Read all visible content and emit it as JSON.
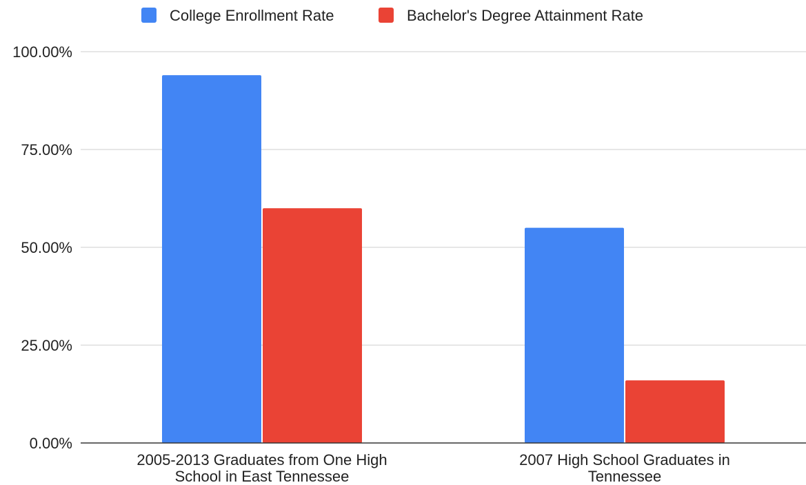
{
  "chart_data": {
    "type": "bar",
    "title": "",
    "xlabel": "",
    "ylabel": "",
    "categories": [
      [
        "2005-2013 Graduates from One High",
        "School in East Tennessee"
      ],
      [
        "2007 High School Graduates in",
        "Tennessee"
      ]
    ],
    "series": [
      {
        "name": "College Enrollment Rate",
        "color": "#4285f4",
        "values": [
          0.94,
          0.55
        ]
      },
      {
        "name": "Bachelor's Degree Attainment Rate",
        "color": "#ea4335",
        "values": [
          0.6,
          0.16
        ]
      }
    ],
    "ylim": [
      0,
      1
    ],
    "yticks": [
      {
        "value": 0,
        "label": "0.00%"
      },
      {
        "value": 0.25,
        "label": "25.00%"
      },
      {
        "value": 0.5,
        "label": "50.00%"
      },
      {
        "value": 0.75,
        "label": "75.00%"
      },
      {
        "value": 1,
        "label": "100.00%"
      }
    ],
    "grid": true,
    "legend_position": "top-center"
  }
}
